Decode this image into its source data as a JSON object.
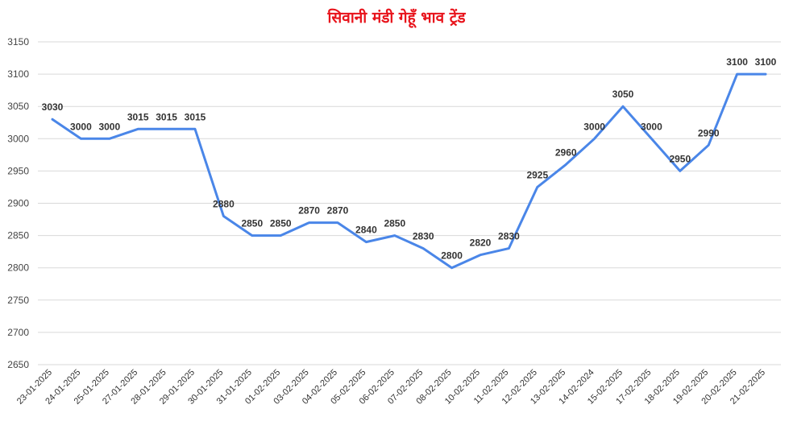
{
  "chart_data": {
    "type": "line",
    "title": "सिवानी मंडी गेहूँ भाव ट्रेंड",
    "xlabel": "",
    "ylabel": "",
    "ylim": [
      2650,
      3150
    ],
    "yticks": [
      2650,
      2700,
      2750,
      2800,
      2850,
      2900,
      2950,
      3000,
      3050,
      3100,
      3150
    ],
    "grid": true,
    "legend": "none",
    "line_color": "#4a86e8",
    "categories": [
      "23-01-2025",
      "24-01-2025",
      "25-01-2025",
      "27-01-2025",
      "28-01-2025",
      "29-01-2025",
      "30-01-2025",
      "31-01-2025",
      "01-02-2025",
      "03-02-2025",
      "04-02-2025",
      "05-02-2025",
      "06-02-2025",
      "07-02-2025",
      "08-02-2025",
      "10-02-2025",
      "11-02-2025",
      "12-02-2025",
      "13-02-2025",
      "14-02-2024",
      "15-02-2025",
      "17-02-2025",
      "18-02-2025",
      "19-02-2025",
      "20-02-2025",
      "21-02-2025"
    ],
    "values": [
      3030,
      3000,
      3000,
      3015,
      3015,
      3015,
      2880,
      2850,
      2850,
      2870,
      2870,
      2840,
      2850,
      2830,
      2800,
      2820,
      2830,
      2925,
      2960,
      3000,
      3050,
      3000,
      2950,
      2990,
      3100,
      3100
    ]
  }
}
